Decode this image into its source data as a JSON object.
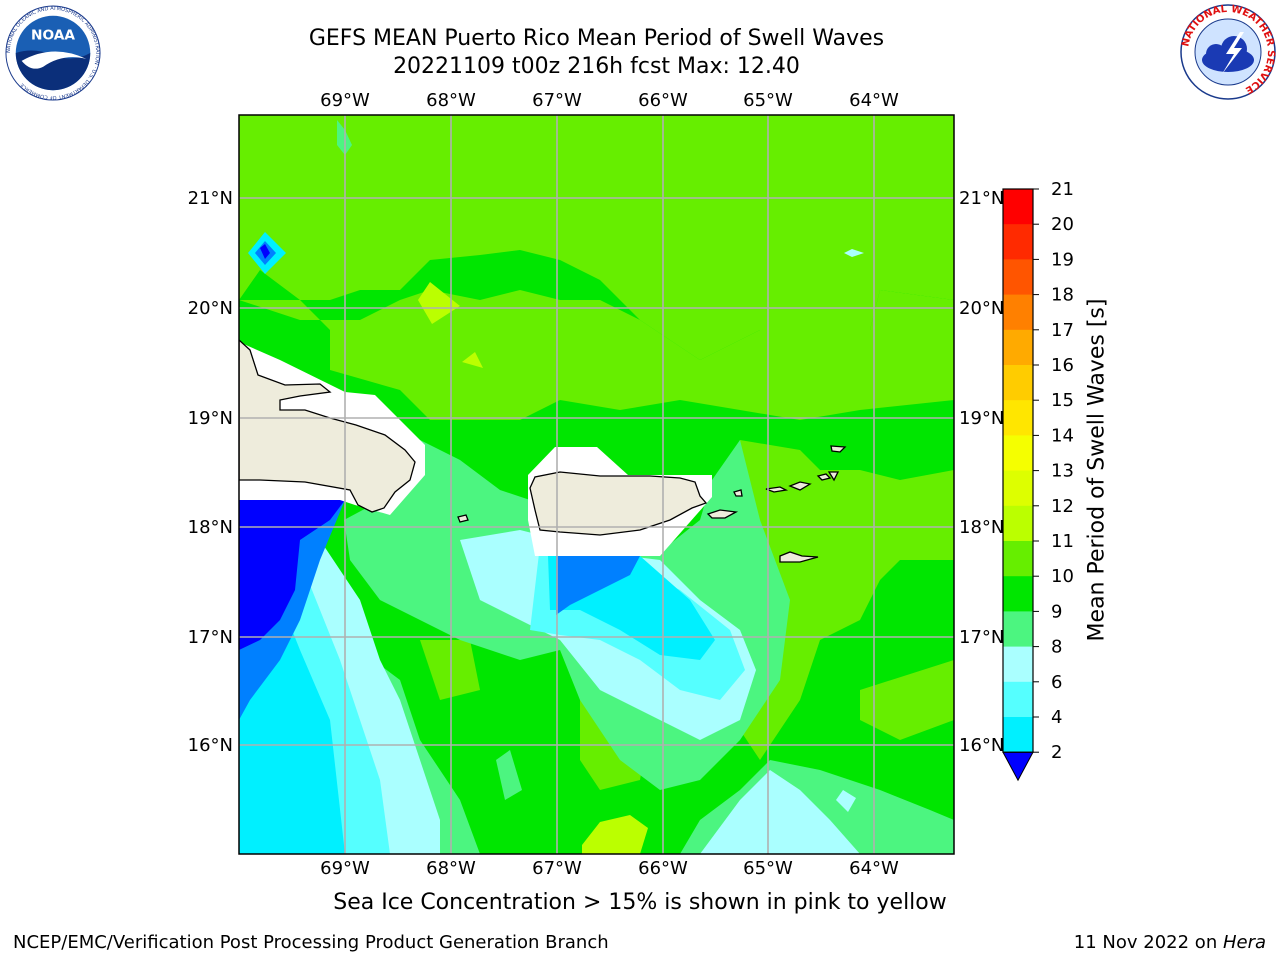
{
  "header": {
    "title_line1": "GEFS MEAN Puerto Rico Mean Period of Swell Waves",
    "title_line2": "20221109 t00z 216h fcst   Max: 12.40"
  },
  "logos": {
    "left": "noaa-logo",
    "left_text": "NOAA",
    "left_ring_text": "NATIONAL OCEANIC AND ATMOSPHERIC ADMINISTRATION · U.S. DEPARTMENT OF COMMERCE",
    "right": "nws-logo",
    "right_ring_text": "NATIONAL WEATHER SERVICE"
  },
  "map": {
    "lon_labels": [
      "69°W",
      "68°W",
      "67°W",
      "66°W",
      "65°W",
      "64°W"
    ],
    "lat_labels": [
      "21°N",
      "20°N",
      "19°N",
      "18°N",
      "17°N",
      "16°N"
    ],
    "base_color": "#00e600",
    "land_color": "#eeecdc"
  },
  "colorbar": {
    "label": "Mean Period of Swell Waves [s]",
    "ticks": [
      "21",
      "20",
      "19",
      "18",
      "17",
      "16",
      "15",
      "14",
      "13",
      "12",
      "11",
      "10",
      "9",
      "8",
      "6",
      "4",
      "2"
    ],
    "colors": [
      "#ff0000",
      "#ff2a00",
      "#ff5500",
      "#ff8000",
      "#ffaa00",
      "#ffcc00",
      "#ffe600",
      "#f5ff00",
      "#ddff00",
      "#bbff00",
      "#66ee00",
      "#00e600",
      "#4cf580",
      "#aaffff",
      "#55ffff",
      "#00f0ff",
      "#0080ff",
      "#0000ff"
    ]
  },
  "footer": {
    "ice_note": "Sea Ice Concentration > 15% is shown in pink to yellow",
    "left": "NCEP/EMC/Verification Post Processing Product Generation Branch",
    "date": "11 Nov 2022 on ",
    "machine": "Hera"
  }
}
